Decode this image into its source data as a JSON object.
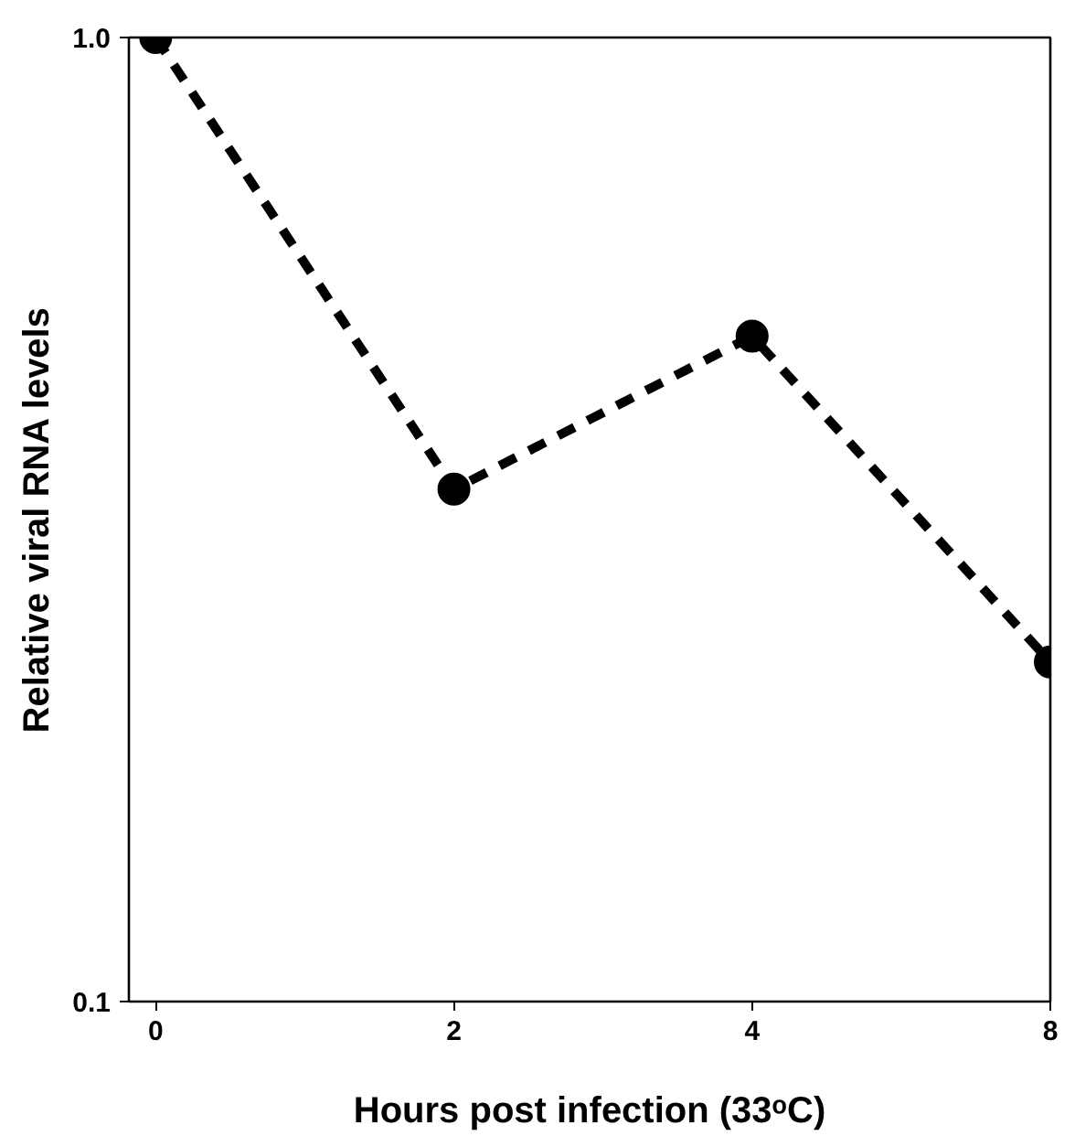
{
  "chart_data": {
    "type": "line",
    "xlabel": "Hours post infection (33ᵒC)",
    "ylabel": "Relative viral RNA levels",
    "categories": [
      "0",
      "2",
      "4",
      "8"
    ],
    "series": [
      {
        "color": "#000000",
        "values": [
          1.0,
          0.34,
          0.49,
          0.225
        ]
      }
    ],
    "log": true,
    "ylim": [
      0.1,
      1.0
    ],
    "yticks": [
      {
        "value": 0.1,
        "label": "0.1"
      },
      {
        "value": 1.0,
        "label": "1.0"
      }
    ],
    "grid": false,
    "marker": "circle",
    "line_style": "dashed"
  }
}
